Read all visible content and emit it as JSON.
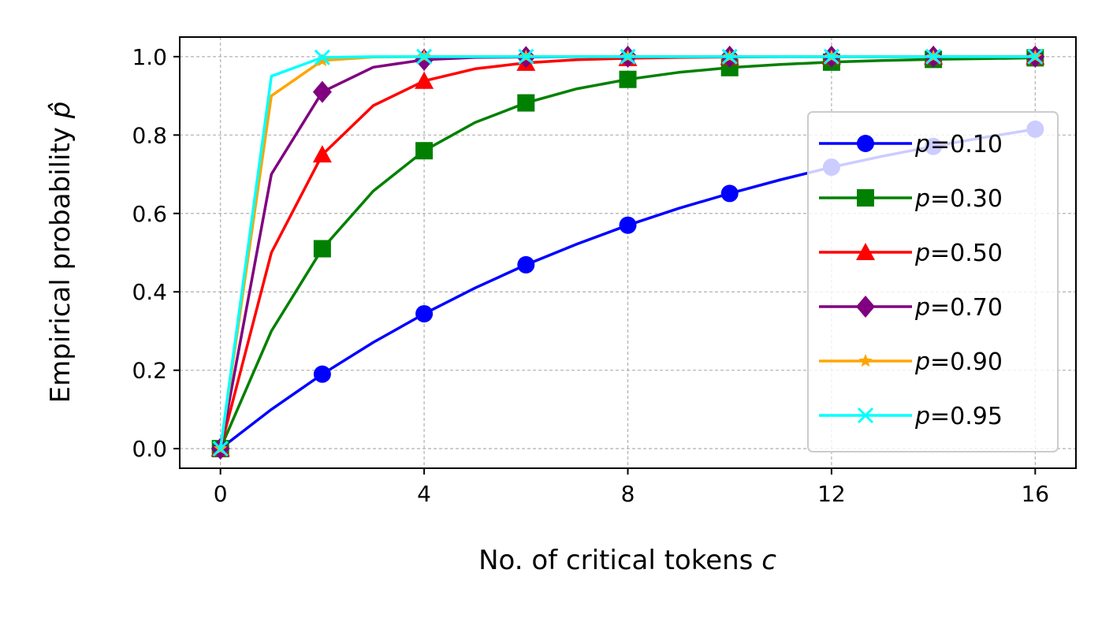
{
  "chart_data": {
    "type": "line",
    "xlabel": "No. of critical tokens ",
    "xlabel_var": "c",
    "ylabel": "Empirical probability ",
    "ylabel_var": "p̂",
    "xlim": [
      -0.8,
      16.8
    ],
    "ylim": [
      -0.05,
      1.05
    ],
    "xticks": [
      0,
      4,
      8,
      12,
      16
    ],
    "yticks": [
      0.0,
      0.2,
      0.4,
      0.6,
      0.8,
      1.0
    ],
    "ytick_labels": [
      "0.0",
      "0.2",
      "0.4",
      "0.6",
      "0.8",
      "1.0"
    ],
    "grid": true,
    "legend_position": "right",
    "x": [
      0,
      1,
      2,
      3,
      4,
      5,
      6,
      7,
      8,
      9,
      10,
      11,
      12,
      13,
      14,
      15,
      16
    ],
    "series": [
      {
        "name_prefix": "p",
        "name_value": "=0.10",
        "color": "#0000ff",
        "marker": "circle",
        "values": [
          0.0,
          0.1,
          0.19,
          0.271,
          0.344,
          0.41,
          0.469,
          0.522,
          0.57,
          0.613,
          0.651,
          0.686,
          0.718,
          0.746,
          0.771,
          0.794,
          0.815
        ]
      },
      {
        "name_prefix": "p",
        "name_value": "=0.30",
        "color": "#008000",
        "marker": "square",
        "values": [
          0.0,
          0.3,
          0.51,
          0.657,
          0.76,
          0.832,
          0.882,
          0.918,
          0.942,
          0.96,
          0.972,
          0.98,
          0.986,
          0.99,
          0.993,
          0.995,
          0.997
        ]
      },
      {
        "name_prefix": "p",
        "name_value": "=0.50",
        "color": "#ff0000",
        "marker": "triangle",
        "values": [
          0.0,
          0.5,
          0.75,
          0.875,
          0.938,
          0.969,
          0.984,
          0.992,
          0.996,
          0.998,
          0.999,
          1.0,
          1.0,
          1.0,
          1.0,
          1.0,
          1.0
        ]
      },
      {
        "name_prefix": "p",
        "name_value": "=0.70",
        "color": "#800080",
        "marker": "diamond",
        "values": [
          0.0,
          0.7,
          0.91,
          0.973,
          0.992,
          0.998,
          0.999,
          1.0,
          1.0,
          1.0,
          1.0,
          1.0,
          1.0,
          1.0,
          1.0,
          1.0,
          1.0
        ]
      },
      {
        "name_prefix": "p",
        "name_value": "=0.90",
        "color": "#ffa500",
        "marker": "star",
        "values": [
          0.0,
          0.9,
          0.99,
          0.999,
          1.0,
          1.0,
          1.0,
          1.0,
          1.0,
          1.0,
          1.0,
          1.0,
          1.0,
          1.0,
          1.0,
          1.0,
          1.0
        ]
      },
      {
        "name_prefix": "p",
        "name_value": "=0.95",
        "color": "#00ffff",
        "marker": "x",
        "values": [
          0.0,
          0.95,
          0.998,
          1.0,
          1.0,
          1.0,
          1.0,
          1.0,
          1.0,
          1.0,
          1.0,
          1.0,
          1.0,
          1.0,
          1.0,
          1.0,
          1.0
        ]
      }
    ]
  }
}
